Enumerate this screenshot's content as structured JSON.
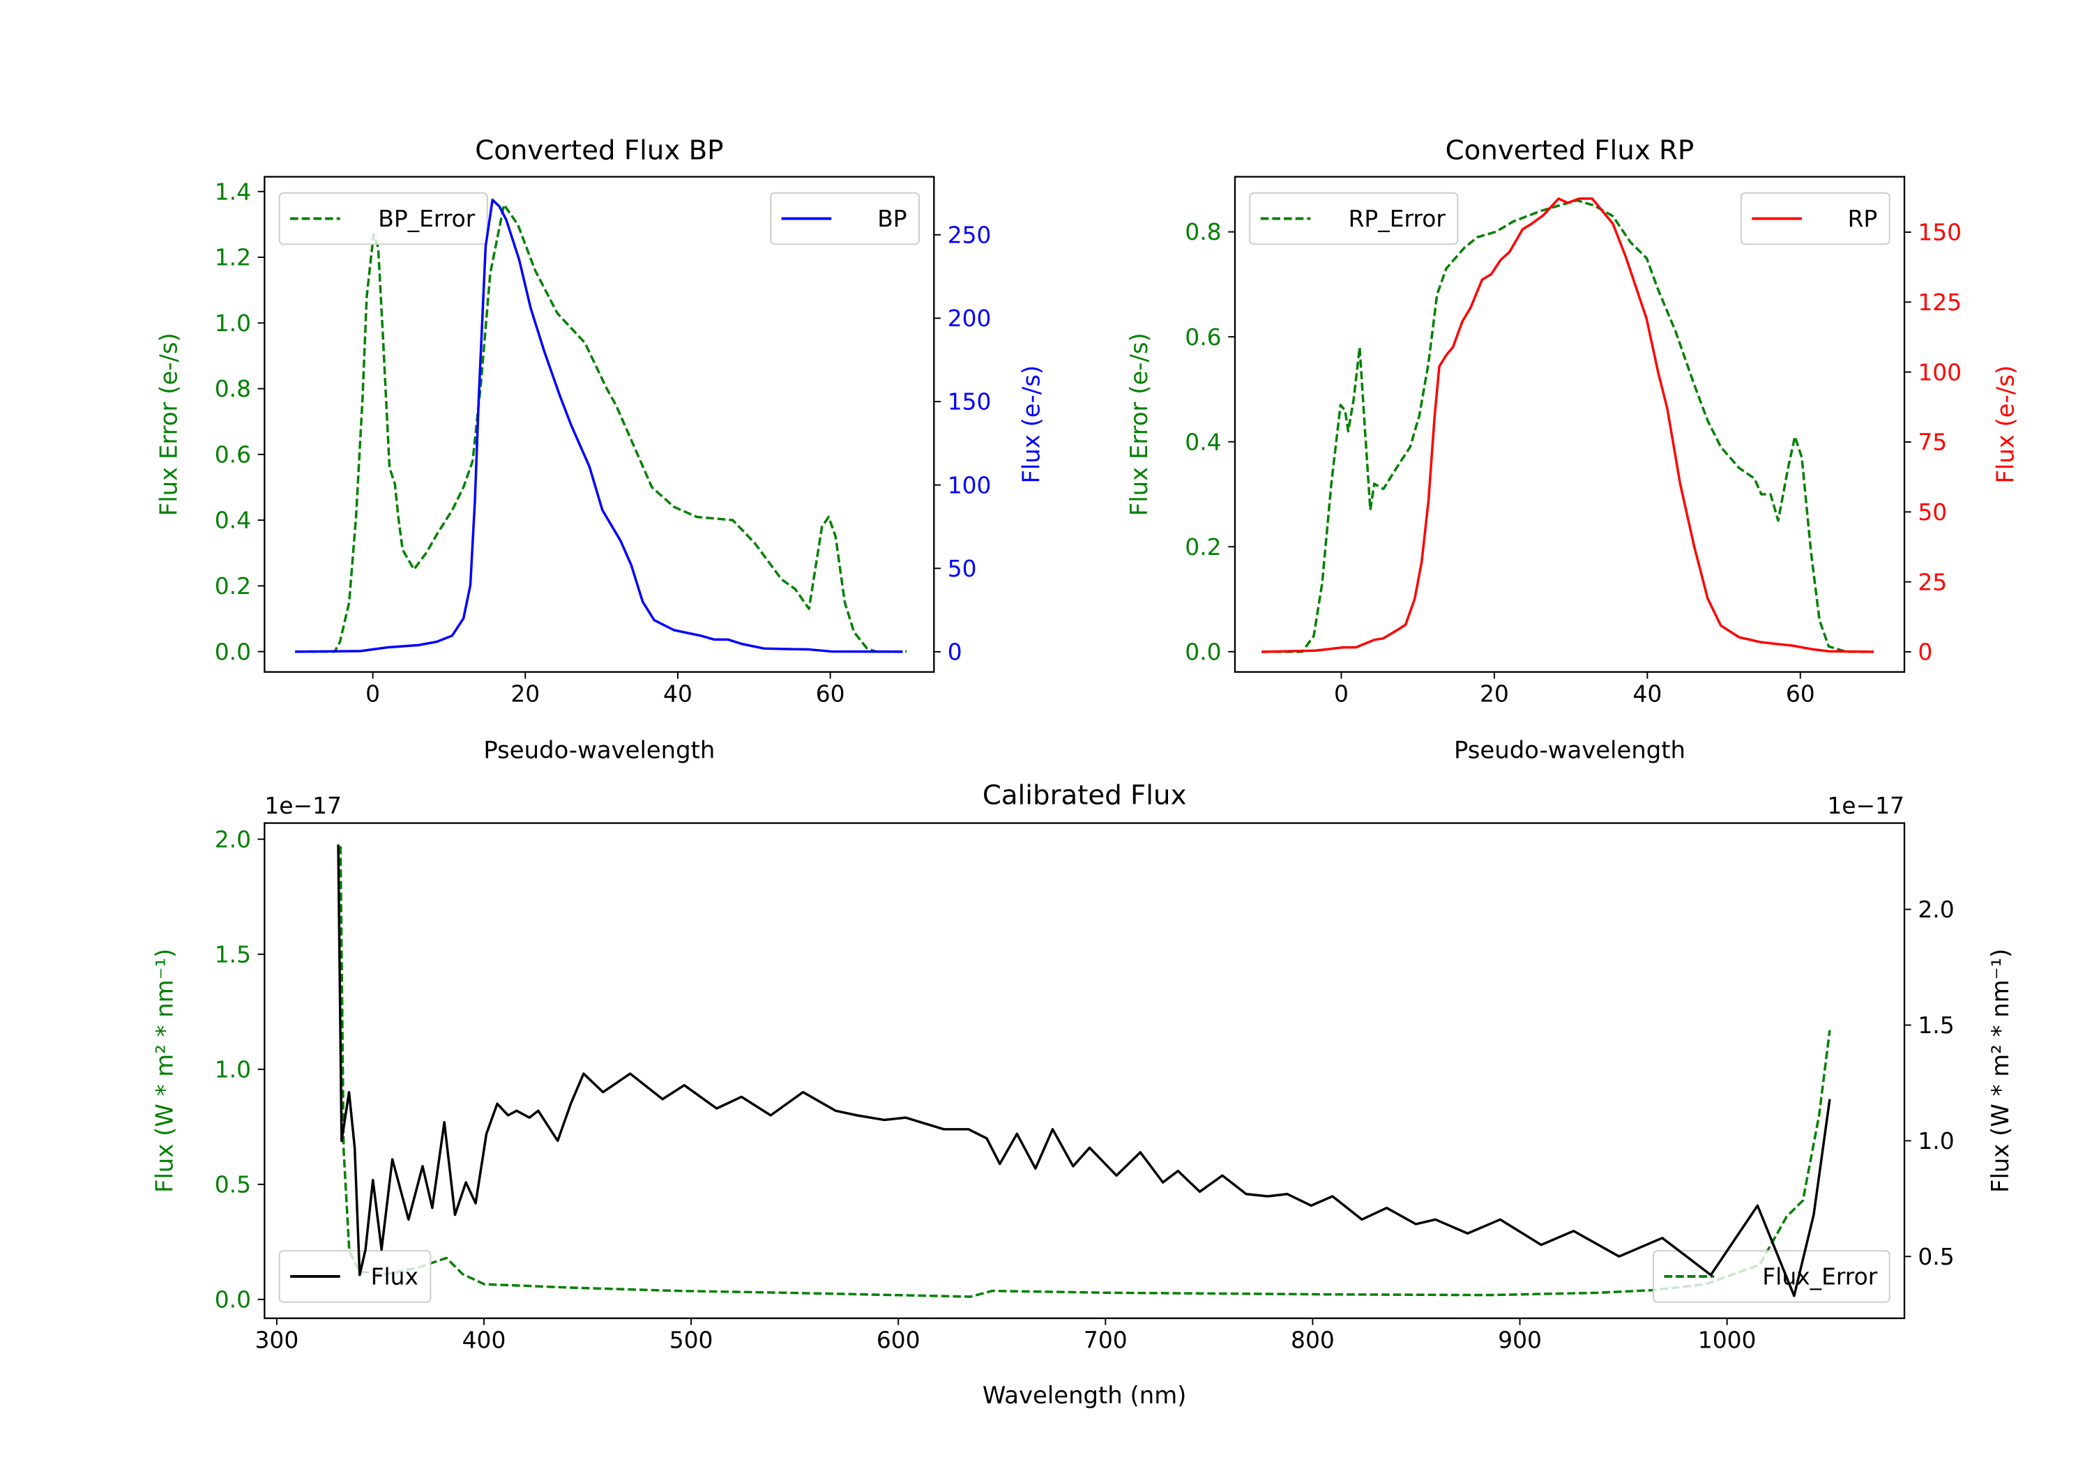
{
  "chart_data": [
    {
      "type": "line",
      "title": "Converted Flux BP",
      "xlabel": "Pseudo-wavelength",
      "ylabel_left": "Flux Error (e-/s)",
      "ylabel_right": "Flux (e-/s)",
      "left_color": "#008000",
      "right_color": "#0000ff",
      "xlim": [
        -14.2,
        73.6
      ],
      "ylim_left": [
        -0.062,
        1.445
      ],
      "ylim_right": [
        -12.1,
        284.8
      ],
      "xticks": [
        0,
        20,
        40,
        60
      ],
      "xtick_labels": [
        "0",
        "20",
        "40",
        "60"
      ],
      "yticks_left": [
        0,
        0.2,
        0.4,
        0.6,
        0.8,
        1.0,
        1.2,
        1.4
      ],
      "ytick_labels_left": [
        "0.0",
        "0.2",
        "0.4",
        "0.6",
        "0.8",
        "1.0",
        "1.2",
        "1.4"
      ],
      "yticks_right": [
        0,
        50,
        100,
        150,
        200,
        250
      ],
      "ytick_labels_right": [
        "0",
        "50",
        "100",
        "150",
        "200",
        "250"
      ],
      "series": [
        {
          "name": "BP_Error",
          "axis": "left",
          "color": "#008000",
          "style": "dashed",
          "legend": "upper left",
          "x": [
            -10,
            -5,
            -4.3,
            -3.1,
            -2.2,
            -1.35,
            -0.8,
            0.1,
            0.7,
            1.3,
            2.2,
            2.9,
            3.35,
            3.9,
            5.4,
            7,
            8.5,
            10.4,
            11.9,
            13.1,
            14.2,
            15.4,
            17.2,
            19,
            21.3,
            24.2,
            27.8,
            30.7,
            31.9,
            33.6,
            36.6,
            39.5,
            42.5,
            47.2,
            50.1,
            53.6,
            55.4,
            57.2,
            58.9,
            59.8,
            60.7,
            61.9,
            63.1,
            64.8,
            66,
            70
          ],
          "y": [
            0,
            0,
            0.03,
            0.15,
            0.41,
            0.77,
            1.08,
            1.27,
            1.23,
            0.97,
            0.56,
            0.51,
            0.41,
            0.31,
            0.25,
            0.3,
            0.36,
            0.43,
            0.5,
            0.58,
            0.82,
            1.15,
            1.36,
            1.3,
            1.16,
            1.03,
            0.94,
            0.8,
            0.75,
            0.66,
            0.5,
            0.44,
            0.41,
            0.4,
            0.33,
            0.22,
            0.19,
            0.13,
            0.38,
            0.41,
            0.35,
            0.15,
            0.06,
            0.01,
            0,
            0
          ]
        },
        {
          "name": "BP",
          "axis": "right",
          "color": "#0000ff",
          "style": "solid",
          "legend": "upper right",
          "x": [
            -10.2,
            -1.6,
            1.9,
            6,
            8.4,
            10.4,
            11.9,
            12.8,
            13.4,
            13.9,
            14.8,
            15.7,
            16.6,
            17.5,
            19.2,
            20.7,
            22.5,
            24.5,
            26,
            28.4,
            30.1,
            32.5,
            33.9,
            35.4,
            36.9,
            39.5,
            43,
            44.8,
            46.6,
            48.4,
            51.3,
            54.8,
            57.2,
            60.1,
            69.5
          ],
          "y": [
            0,
            0.4,
            2.6,
            4,
            6,
            9.7,
            20,
            40,
            91,
            152,
            243,
            271,
            267,
            259,
            235,
            206,
            180,
            154,
            136,
            111,
            85,
            66.5,
            52,
            30,
            19,
            13,
            9.7,
            7.3,
            7.3,
            4.7,
            2,
            1.6,
            1.4,
            0.2,
            0
          ]
        }
      ]
    },
    {
      "type": "line",
      "title": "Converted Flux RP",
      "xlabel": "Pseudo-wavelength",
      "ylabel_left": "Flux Error (e-/s)",
      "ylabel_right": "Flux (e-/s)",
      "left_color": "#008000",
      "right_color": "#ff0000",
      "xlim": [
        -13.9,
        73.6
      ],
      "ylim_left": [
        -0.0386,
        0.905
      ],
      "ylim_right": [
        -7.2,
        169.8
      ],
      "xticks": [
        0,
        20,
        40,
        60
      ],
      "xtick_labels": [
        "0",
        "20",
        "40",
        "60"
      ],
      "yticks_left": [
        0,
        0.2,
        0.4,
        0.6,
        0.8
      ],
      "ytick_labels_left": [
        "0.0",
        "0.2",
        "0.4",
        "0.6",
        "0.8"
      ],
      "yticks_right": [
        0,
        25,
        50,
        75,
        100,
        125,
        150
      ],
      "ytick_labels_right": [
        "0",
        "25",
        "50",
        "75",
        "100",
        "125",
        "150"
      ],
      "series": [
        {
          "name": "RP_Error",
          "axis": "left",
          "color": "#008000",
          "style": "dashed",
          "legend": "upper left",
          "x": [
            -10.4,
            -5.1,
            -3.6,
            -2.5,
            -1.3,
            -0.1,
            0.5,
            0.9,
            1.6,
            2.4,
            3.1,
            3.8,
            4.3,
            5.5,
            7.2,
            9,
            10.2,
            11.4,
            12.5,
            13.7,
            16.1,
            17.8,
            20.2,
            22.5,
            26.1,
            28.4,
            30.8,
            33.1,
            35.5,
            37.8,
            39.9,
            41.4,
            43.7,
            46.1,
            47.9,
            49.6,
            52,
            54,
            54.9,
            56.1,
            57.1,
            58.4,
            59.3,
            60.2,
            61.4,
            62.5,
            63.7,
            66,
            69.6
          ],
          "y": [
            0,
            0,
            0.03,
            0.13,
            0.32,
            0.47,
            0.46,
            0.42,
            0.48,
            0.58,
            0.42,
            0.27,
            0.32,
            0.31,
            0.35,
            0.39,
            0.45,
            0.55,
            0.68,
            0.73,
            0.77,
            0.79,
            0.8,
            0.82,
            0.84,
            0.85,
            0.86,
            0.85,
            0.83,
            0.78,
            0.75,
            0.69,
            0.61,
            0.51,
            0.44,
            0.39,
            0.35,
            0.33,
            0.3,
            0.3,
            0.25,
            0.35,
            0.41,
            0.37,
            0.19,
            0.06,
            0.01,
            0,
            0
          ]
        },
        {
          "name": "RP",
          "axis": "right",
          "color": "#ff0000",
          "style": "solid",
          "legend": "upper right",
          "x": [
            -10.4,
            -3.4,
            0.2,
            1.9,
            4.3,
            5.5,
            7.2,
            8.4,
            9.6,
            10.5,
            11.4,
            12.2,
            12.8,
            13.7,
            14.6,
            15.8,
            16.9,
            18.4,
            19.6,
            20.8,
            22,
            23.7,
            24.9,
            26.4,
            28.4,
            29.6,
            31.1,
            32.8,
            34.3,
            35.5,
            37.2,
            39.9,
            41.4,
            42.6,
            44.3,
            46.1,
            47.9,
            49.6,
            52,
            54.9,
            59,
            61.4,
            63.7,
            69.6
          ],
          "y": [
            0,
            0.4,
            1.6,
            1.6,
            4.3,
            4.8,
            7.6,
            9.7,
            19,
            32,
            54,
            84,
            102,
            106,
            109,
            118,
            123,
            133,
            135,
            140,
            143,
            151,
            153,
            156,
            162,
            160.5,
            162,
            162,
            157,
            153,
            141,
            119,
            100,
            87,
            60,
            38,
            19,
            9.4,
            5.2,
            3.4,
            2.2,
            1,
            0.2,
            0
          ]
        }
      ]
    },
    {
      "type": "line",
      "title": "Calibrated Flux",
      "xlabel": "Wavelength (nm)",
      "ylabel_left": "Flux (W * m² * nm⁻¹)",
      "ylabel_right": "Flux (W * m² * nm⁻¹)",
      "left_color": "#008000",
      "right_color": "#000000",
      "offset_left": "1e−17",
      "offset_right": "1e−17",
      "xlim": [
        294.1,
        1085.6
      ],
      "ylim_left": [
        -0.082,
        2.07
      ],
      "ylim_right": [
        0.233,
        2.373
      ],
      "xticks": [
        300,
        400,
        500,
        600,
        700,
        800,
        900,
        1000
      ],
      "xtick_labels": [
        "300",
        "400",
        "500",
        "600",
        "700",
        "800",
        "900",
        "1000"
      ],
      "yticks_left": [
        0,
        0.5,
        1.0,
        1.5,
        2.0
      ],
      "ytick_labels_left": [
        "0.0",
        "0.5",
        "1.0",
        "1.5",
        "2.0"
      ],
      "yticks_right": [
        0.5,
        1.0,
        1.5,
        2.0
      ],
      "ytick_labels_right": [
        "0.5",
        "1.0",
        "1.5",
        "2.0"
      ],
      "series": [
        {
          "name": "Flux",
          "axis": "right",
          "color": "#000000",
          "style": "solid",
          "legend": "lower left",
          "x": [
            329.7,
            331.3,
            334.9,
            337.6,
            340,
            342.8,
            346.4,
            350.6,
            355.8,
            363.6,
            370.4,
            375.1,
            380.9,
            386,
            391.3,
            396,
            401.2,
            406.4,
            411.6,
            415.8,
            422,
            426.2,
            435.6,
            441.9,
            448.1,
            457.5,
            470.6,
            486.2,
            496.7,
            512.3,
            524.3,
            538.4,
            554,
            569.7,
            580.1,
            593.2,
            603.6,
            621.9,
            633.9,
            642.7,
            649,
            657.3,
            666.2,
            674.5,
            684.4,
            692.3,
            705.3,
            716.8,
            727.7,
            735,
            745.5,
            756.4,
            767.9,
            778.3,
            787.7,
            799.2,
            809.6,
            823.7,
            835.7,
            849.8,
            859.2,
            874.8,
            890.5,
            910.3,
            925.9,
            947.9,
            968.7,
            992.2,
            1014.7,
            1032.4,
            1041.8,
            1049.6
          ],
          "y": [
            2.28,
            1.0,
            1.21,
            0.97,
            0.42,
            0.53,
            0.83,
            0.53,
            0.92,
            0.66,
            0.89,
            0.71,
            1.08,
            0.68,
            0.82,
            0.73,
            1.03,
            1.16,
            1.11,
            1.13,
            1.1,
            1.13,
            1.0,
            1.16,
            1.29,
            1.21,
            1.29,
            1.18,
            1.24,
            1.14,
            1.19,
            1.11,
            1.21,
            1.13,
            1.11,
            1.09,
            1.1,
            1.05,
            1.05,
            1.01,
            0.9,
            1.03,
            0.88,
            1.05,
            0.89,
            0.97,
            0.85,
            0.95,
            0.82,
            0.87,
            0.78,
            0.85,
            0.77,
            0.76,
            0.77,
            0.72,
            0.76,
            0.66,
            0.71,
            0.64,
            0.66,
            0.6,
            0.66,
            0.55,
            0.61,
            0.5,
            0.58,
            0.42,
            0.72,
            0.33,
            0.68,
            1.18
          ]
        },
        {
          "name": "Flux_Error",
          "axis": "left",
          "color": "#008000",
          "style": "dashed",
          "legend": "lower right",
          "x": [
            330.8,
            332.3,
            335,
            340,
            353.2,
            368.9,
            381.9,
            389.7,
            400.2,
            421,
            441.9,
            468,
            494,
            546.2,
            598.4,
            634.9,
            645.3,
            702.7,
            807,
            885.3,
            937.5,
            963.5,
            989.6,
            1015.7,
            1028.8,
            1036.6,
            1044.4,
            1049.6
          ],
          "y": [
            1.97,
            0.65,
            0.21,
            0.12,
            0.11,
            0.14,
            0.18,
            0.11,
            0.066,
            0.059,
            0.051,
            0.044,
            0.037,
            0.029,
            0.019,
            0.012,
            0.037,
            0.029,
            0.022,
            0.019,
            0.029,
            0.04,
            0.066,
            0.15,
            0.36,
            0.43,
            0.8,
            1.17
          ]
        }
      ]
    }
  ]
}
